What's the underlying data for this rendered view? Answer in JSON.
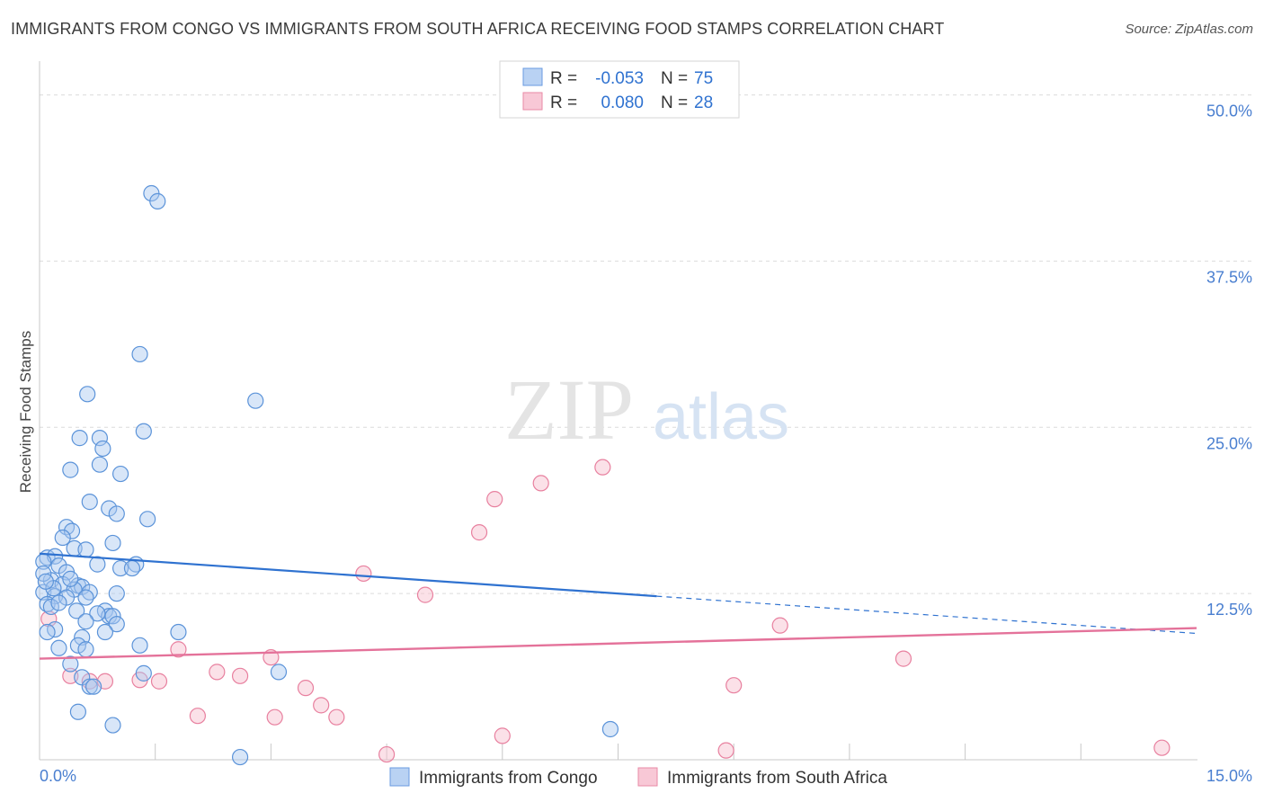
{
  "header": {
    "title": "IMMIGRANTS FROM CONGO VS IMMIGRANTS FROM SOUTH AFRICA RECEIVING FOOD STAMPS CORRELATION CHART",
    "source": "Source: ZipAtlas.com"
  },
  "watermark": {
    "zip": "ZIP",
    "atlas": "atlas"
  },
  "colors": {
    "blue_fill": "#a9c8f0",
    "blue_stroke": "#5b93d9",
    "blue_line": "#2f72d0",
    "pink_fill": "#f6bccd",
    "pink_stroke": "#e8809f",
    "pink_line": "#e4729a",
    "grid": "#dcdcdc",
    "tick_text": "#4a7fd0"
  },
  "chart_data": {
    "type": "scatter",
    "title": "IMMIGRANTS FROM CONGO VS IMMIGRANTS FROM SOUTH AFRICA RECEIVING FOOD STAMPS CORRELATION CHART",
    "xlabel": "",
    "ylabel": "Receiving Food Stamps",
    "xlim": [
      0,
      15
    ],
    "ylim": [
      0,
      52
    ],
    "x_tick_labels": [
      {
        "value": 0,
        "label": "0.0%"
      },
      {
        "value": 15,
        "label": "15.0%"
      }
    ],
    "y_ticks": [
      {
        "value": 12.5,
        "label": "12.5%"
      },
      {
        "value": 25,
        "label": "25.0%"
      },
      {
        "value": 37.5,
        "label": "37.5%"
      },
      {
        "value": 50,
        "label": "50.0%"
      }
    ],
    "x_minor_ticks": [
      1.5,
      3.0,
      4.5,
      6.0,
      7.5,
      9.0,
      10.5,
      12.0,
      13.5
    ],
    "legend": {
      "position": "top-center",
      "entries": [
        {
          "r_label": "R =",
          "r_value": "-0.053",
          "n_label": "N =",
          "n_value": "75"
        },
        {
          "r_label": "R =",
          "r_value": "0.080",
          "n_label": "N =",
          "n_value": "28"
        }
      ]
    },
    "bottom_legend": [
      "Immigrants from Congo",
      "Immigrants from South Africa"
    ],
    "series": [
      {
        "name": "Immigrants from Congo",
        "color": "blue",
        "trend": {
          "x": [
            0,
            8
          ],
          "y": [
            15.5,
            12.3
          ]
        },
        "trend_dashed": {
          "x": [
            8,
            15
          ],
          "y": [
            12.3,
            9.5
          ]
        },
        "points": [
          [
            1.45,
            42.6
          ],
          [
            1.53,
            42.0
          ],
          [
            1.3,
            30.5
          ],
          [
            0.62,
            27.5
          ],
          [
            2.8,
            27.0
          ],
          [
            1.35,
            24.7
          ],
          [
            0.52,
            24.2
          ],
          [
            0.78,
            24.2
          ],
          [
            0.82,
            23.4
          ],
          [
            0.78,
            22.2
          ],
          [
            0.4,
            21.8
          ],
          [
            1.05,
            21.5
          ],
          [
            0.65,
            19.4
          ],
          [
            0.9,
            18.9
          ],
          [
            1.0,
            18.5
          ],
          [
            1.4,
            18.1
          ],
          [
            0.35,
            17.5
          ],
          [
            0.42,
            17.2
          ],
          [
            0.3,
            16.7
          ],
          [
            0.95,
            16.3
          ],
          [
            0.45,
            15.9
          ],
          [
            0.6,
            15.8
          ],
          [
            0.1,
            15.2
          ],
          [
            0.2,
            15.3
          ],
          [
            0.05,
            14.9
          ],
          [
            0.25,
            14.6
          ],
          [
            0.75,
            14.7
          ],
          [
            1.25,
            14.7
          ],
          [
            1.05,
            14.4
          ],
          [
            1.2,
            14.4
          ],
          [
            0.35,
            14.1
          ],
          [
            0.15,
            13.5
          ],
          [
            0.3,
            13.2
          ],
          [
            0.5,
            13.1
          ],
          [
            0.55,
            13.0
          ],
          [
            0.45,
            12.8
          ],
          [
            0.65,
            12.6
          ],
          [
            0.05,
            12.6
          ],
          [
            0.2,
            12.3
          ],
          [
            0.35,
            12.2
          ],
          [
            0.6,
            12.2
          ],
          [
            1.0,
            12.5
          ],
          [
            0.1,
            11.7
          ],
          [
            0.15,
            11.5
          ],
          [
            0.25,
            11.8
          ],
          [
            0.48,
            11.2
          ],
          [
            0.85,
            11.2
          ],
          [
            0.9,
            10.8
          ],
          [
            0.75,
            11.0
          ],
          [
            0.6,
            10.4
          ],
          [
            0.95,
            10.8
          ],
          [
            1.0,
            10.2
          ],
          [
            0.2,
            9.8
          ],
          [
            0.1,
            9.6
          ],
          [
            0.55,
            9.2
          ],
          [
            0.85,
            9.6
          ],
          [
            1.8,
            9.6
          ],
          [
            0.5,
            8.6
          ],
          [
            0.25,
            8.4
          ],
          [
            0.6,
            8.3
          ],
          [
            1.3,
            8.6
          ],
          [
            0.4,
            7.2
          ],
          [
            0.55,
            6.2
          ],
          [
            1.35,
            6.5
          ],
          [
            3.1,
            6.6
          ],
          [
            0.65,
            5.5
          ],
          [
            0.7,
            5.5
          ],
          [
            0.5,
            3.6
          ],
          [
            0.95,
            2.6
          ],
          [
            7.4,
            2.3
          ],
          [
            2.6,
            0.2
          ],
          [
            0.05,
            14.0
          ],
          [
            0.18,
            12.9
          ],
          [
            0.08,
            13.4
          ],
          [
            0.4,
            13.6
          ]
        ]
      },
      {
        "name": "Immigrants from South Africa",
        "color": "pink",
        "trend": {
          "x": [
            0,
            15
          ],
          "y": [
            7.6,
            9.9
          ]
        },
        "points": [
          [
            0.12,
            10.6
          ],
          [
            7.3,
            22.0
          ],
          [
            6.5,
            20.8
          ],
          [
            5.9,
            19.6
          ],
          [
            5.7,
            17.1
          ],
          [
            4.2,
            14.0
          ],
          [
            5.0,
            12.4
          ],
          [
            9.6,
            10.1
          ],
          [
            1.8,
            8.3
          ],
          [
            3.0,
            7.7
          ],
          [
            11.2,
            7.6
          ],
          [
            2.3,
            6.6
          ],
          [
            2.6,
            6.3
          ],
          [
            0.4,
            6.3
          ],
          [
            0.65,
            5.9
          ],
          [
            1.3,
            6.0
          ],
          [
            1.55,
            5.9
          ],
          [
            3.45,
            5.4
          ],
          [
            9.0,
            5.6
          ],
          [
            3.65,
            4.1
          ],
          [
            2.05,
            3.3
          ],
          [
            3.05,
            3.2
          ],
          [
            3.85,
            3.2
          ],
          [
            6.0,
            1.8
          ],
          [
            4.5,
            0.4
          ],
          [
            8.9,
            0.7
          ],
          [
            14.55,
            0.9
          ],
          [
            0.85,
            5.9
          ]
        ]
      }
    ]
  }
}
